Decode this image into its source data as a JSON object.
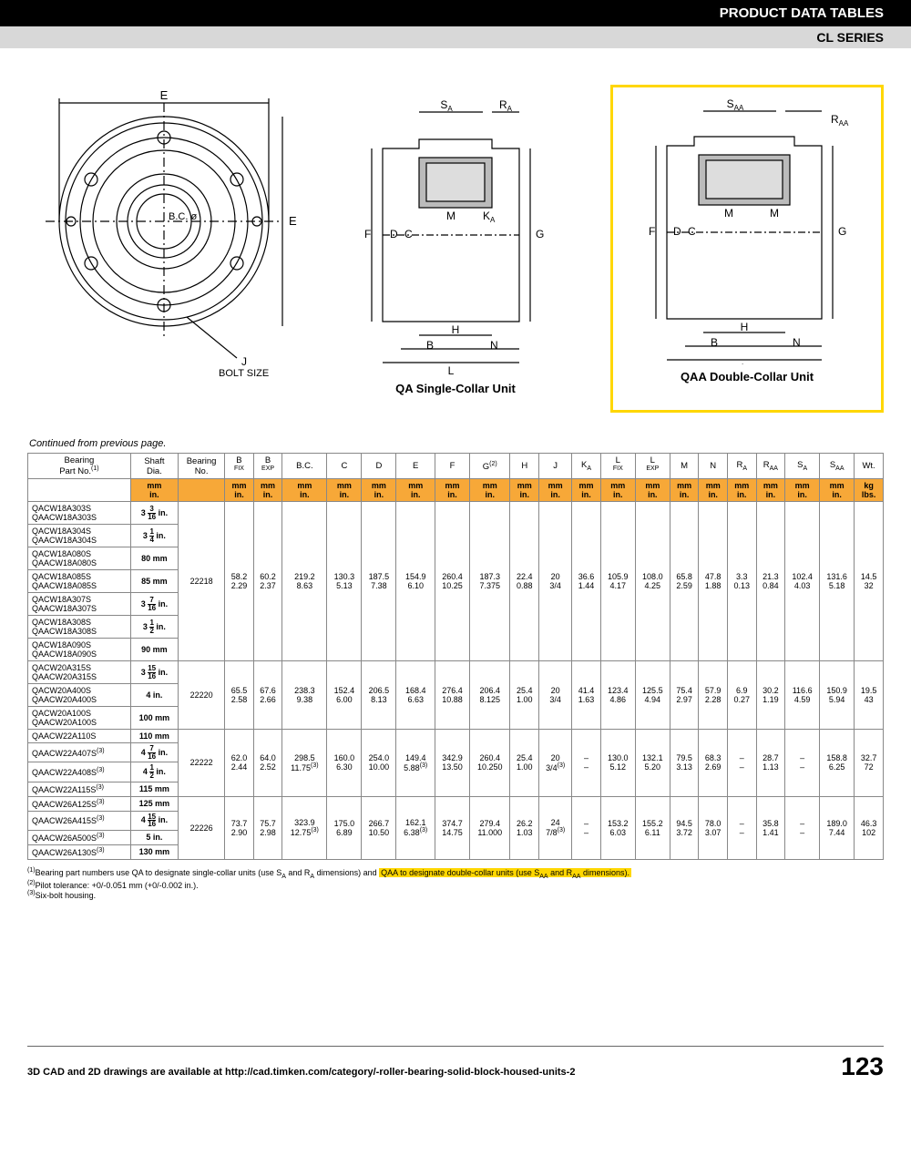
{
  "header": {
    "title": "PRODUCT DATA TABLES",
    "series": "CL SERIES"
  },
  "diagrams": {
    "left": {
      "bolt_label": "J\nBOLT SIZE",
      "labels": [
        "E",
        "E",
        "B.C. ø"
      ]
    },
    "mid": {
      "caption": "QA Single-Collar Unit",
      "labels": [
        "S",
        "R",
        "F",
        "D",
        "C",
        "M",
        "K",
        "G",
        "H",
        "B",
        "N",
        "L"
      ]
    },
    "right": {
      "caption": "QAA Double-Collar Unit",
      "labels": [
        "S",
        "R",
        "F",
        "D",
        "C",
        "M",
        "M",
        "G",
        "H",
        "B",
        "N",
        "L"
      ]
    }
  },
  "continued": "Continued from previous page.",
  "table": {
    "headers1": [
      "Bearing Part No.",
      "Shaft Dia.",
      "Bearing No.",
      "B FIX",
      "B EXP",
      "B.C.",
      "C",
      "D",
      "E",
      "F",
      "G",
      "H",
      "J",
      "K",
      "L FIX",
      "L EXP",
      "M",
      "N",
      "R",
      "R",
      "S",
      "S",
      "Wt."
    ],
    "headers_sup": [
      "(1)",
      "",
      "",
      "",
      "",
      "",
      "",
      "",
      "",
      "",
      "(2)",
      "",
      "",
      "A",
      "",
      "",
      "",
      "",
      "A",
      "AA",
      "A",
      "AA",
      ""
    ],
    "units_top": [
      "mm",
      "",
      "mm",
      "mm",
      "mm",
      "mm",
      "mm",
      "mm",
      "mm",
      "mm",
      "mm",
      "mm",
      "mm",
      "mm",
      "mm",
      "mm",
      "mm",
      "mm",
      "mm",
      "mm",
      "mm",
      "kg"
    ],
    "units_bot": [
      "in.",
      "",
      "in.",
      "in.",
      "in.",
      "in.",
      "in.",
      "in.",
      "in.",
      "in.",
      "in.",
      "in.",
      "in.",
      "in.",
      "in.",
      "in.",
      "in.",
      "in.",
      "in.",
      "in.",
      "in.",
      "lbs."
    ],
    "groups": [
      {
        "bearing_no": "22218",
        "vals_mm": [
          "58.2",
          "60.2",
          "219.2",
          "130.3",
          "187.5",
          "154.9",
          "260.4",
          "187.3",
          "22.4",
          "20",
          "36.6",
          "105.9",
          "108.0",
          "65.8",
          "47.8",
          "3.3",
          "21.3",
          "102.4",
          "131.6",
          "14.5"
        ],
        "vals_in": [
          "2.29",
          "2.37",
          "8.63",
          "5.13",
          "7.38",
          "6.10",
          "10.25",
          "7.375",
          "0.88",
          "3/4",
          "1.44",
          "4.17",
          "4.25",
          "2.59",
          "1.88",
          "0.13",
          "0.84",
          "4.03",
          "5.18",
          "32"
        ],
        "rows": [
          {
            "parts": [
              "QACW18A303S",
              "QAACW18A303S"
            ],
            "shaft": "3 3/16 in."
          },
          {
            "parts": [
              "QACW18A304S",
              "QAACW18A304S"
            ],
            "shaft": "3 1/4 in."
          },
          {
            "parts": [
              "QACW18A080S",
              "QAACW18A080S"
            ],
            "shaft": "80 mm"
          },
          {
            "parts": [
              "QACW18A085S",
              "QAACW18A085S"
            ],
            "shaft": "85 mm"
          },
          {
            "parts": [
              "QACW18A307S",
              "QAACW18A307S"
            ],
            "shaft": "3 7/16 in."
          },
          {
            "parts": [
              "QACW18A308S",
              "QAACW18A308S"
            ],
            "shaft": "3 1/2 in."
          },
          {
            "parts": [
              "QACW18A090S",
              "QAACW18A090S"
            ],
            "shaft": "90 mm"
          }
        ]
      },
      {
        "bearing_no": "22220",
        "vals_mm": [
          "65.5",
          "67.6",
          "238.3",
          "152.4",
          "206.5",
          "168.4",
          "276.4",
          "206.4",
          "25.4",
          "20",
          "41.4",
          "123.4",
          "125.5",
          "75.4",
          "57.9",
          "6.9",
          "30.2",
          "116.6",
          "150.9",
          "19.5"
        ],
        "vals_in": [
          "2.58",
          "2.66",
          "9.38",
          "6.00",
          "8.13",
          "6.63",
          "10.88",
          "8.125",
          "1.00",
          "3/4",
          "1.63",
          "4.86",
          "4.94",
          "2.97",
          "2.28",
          "0.27",
          "1.19",
          "4.59",
          "5.94",
          "43"
        ],
        "rows": [
          {
            "parts": [
              "QACW20A315S",
              "QAACW20A315S"
            ],
            "shaft": "3 15/16 in."
          },
          {
            "parts": [
              "QACW20A400S",
              "QAACW20A400S"
            ],
            "shaft": "4 in."
          },
          {
            "parts": [
              "QACW20A100S",
              "QAACW20A100S"
            ],
            "shaft": "100 mm"
          }
        ]
      },
      {
        "bearing_no": "22222",
        "vals_mm": [
          "62.0",
          "64.0",
          "298.5",
          "160.0",
          "254.0",
          "149.4",
          "342.9",
          "260.4",
          "25.4",
          "20",
          "–",
          "130.0",
          "132.1",
          "79.5",
          "68.3",
          "–",
          "28.7",
          "–",
          "158.8",
          "32.7"
        ],
        "vals_in": [
          "2.44",
          "2.52",
          "11.75(3)",
          "6.30",
          "10.00",
          "5.88(3)",
          "13.50",
          "10.250",
          "1.00",
          "3/4(3)",
          "–",
          "5.12",
          "5.20",
          "3.13",
          "2.69",
          "–",
          "1.13",
          "–",
          "6.25",
          "72"
        ],
        "rows": [
          {
            "parts": [
              "QAACW22A110S"
            ],
            "shaft": "110 mm"
          },
          {
            "parts": [
              "QAACW22A407S(3)"
            ],
            "shaft": "4 7/16 in."
          },
          {
            "parts": [
              "QAACW22A408S(3)"
            ],
            "shaft": "4 1/2 in."
          },
          {
            "parts": [
              "QAACW22A115S(3)"
            ],
            "shaft": "115 mm"
          }
        ]
      },
      {
        "bearing_no": "22226",
        "vals_mm": [
          "73.7",
          "75.7",
          "323.9",
          "175.0",
          "266.7",
          "162.1",
          "374.7",
          "279.4",
          "26.2",
          "24",
          "–",
          "153.2",
          "155.2",
          "94.5",
          "78.0",
          "–",
          "35.8",
          "–",
          "189.0",
          "46.3"
        ],
        "vals_in": [
          "2.90",
          "2.98",
          "12.75(3)",
          "6.89",
          "10.50",
          "6.38(3)",
          "14.75",
          "11.000",
          "1.03",
          "7/8(3)",
          "–",
          "6.03",
          "6.11",
          "3.72",
          "3.07",
          "–",
          "1.41",
          "–",
          "7.44",
          "102"
        ],
        "rows": [
          {
            "parts": [
              "QAACW26A125S(3)"
            ],
            "shaft": "125 mm"
          },
          {
            "parts": [
              "QAACW26A415S(3)"
            ],
            "shaft": "4 15/16 in."
          },
          {
            "parts": [
              "QAACW26A500S(3)"
            ],
            "shaft": "5 in."
          },
          {
            "parts": [
              "QAACW26A130S(3)"
            ],
            "shaft": "130 mm"
          }
        ]
      }
    ]
  },
  "footnotes": [
    "Bearing part numbers use QA to designate single-collar units (use SA and RA dimensions) and QAA to designate double-collar units (use SAA and RAA dimensions).",
    "Pilot tolerance: +0/-0.051 mm (+0/-0.002 in.).",
    "Six-bolt housing."
  ],
  "footer": {
    "text": "3D CAD and 2D drawings are available at http://cad.timken.com/category/-roller-bearing-solid-block-housed-units-2",
    "page": "123"
  }
}
